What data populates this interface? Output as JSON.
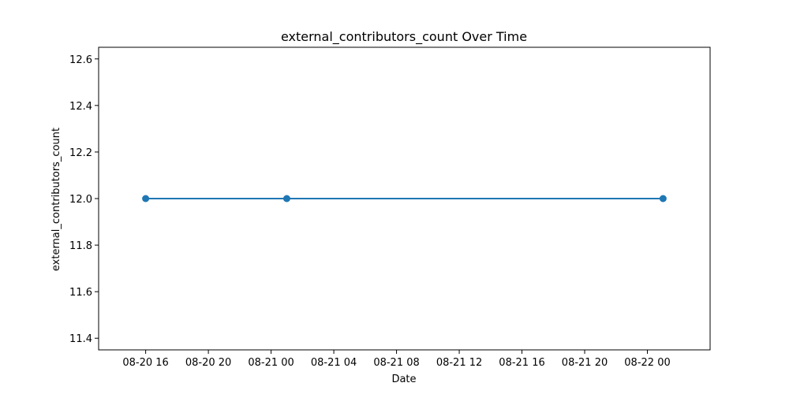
{
  "chart_data": {
    "type": "line",
    "title": "external_contributors_count Over Time",
    "xlabel": "Date",
    "ylabel": "external_contributors_count",
    "x": [
      "2024-08-20 16:00",
      "2024-08-21 01:00",
      "2024-08-22 01:00"
    ],
    "series": [
      {
        "values": [
          12.0,
          12.0,
          12.0
        ]
      }
    ],
    "xlim": [
      "2024-08-20 13:00",
      "2024-08-22 04:00"
    ],
    "ylim": [
      11.35,
      12.65
    ],
    "x_ticks": [
      {
        "value": "2024-08-20 16:00",
        "label": "08-20 16"
      },
      {
        "value": "2024-08-20 20:00",
        "label": "08-20 20"
      },
      {
        "value": "2024-08-21 00:00",
        "label": "08-21 00"
      },
      {
        "value": "2024-08-21 04:00",
        "label": "08-21 04"
      },
      {
        "value": "2024-08-21 08:00",
        "label": "08-21 08"
      },
      {
        "value": "2024-08-21 12:00",
        "label": "08-21 12"
      },
      {
        "value": "2024-08-21 16:00",
        "label": "08-21 16"
      },
      {
        "value": "2024-08-21 20:00",
        "label": "08-21 20"
      },
      {
        "value": "2024-08-22 00:00",
        "label": "08-22 00"
      }
    ],
    "y_ticks": [
      {
        "value": 11.4,
        "label": "11.4"
      },
      {
        "value": 11.6,
        "label": "11.6"
      },
      {
        "value": 11.8,
        "label": "11.8"
      },
      {
        "value": 12.0,
        "label": "12.0"
      },
      {
        "value": 12.2,
        "label": "12.2"
      },
      {
        "value": 12.4,
        "label": "12.4"
      },
      {
        "value": 12.6,
        "label": "12.6"
      }
    ],
    "grid": false,
    "markers": "circle",
    "colors": {
      "series": "#1f77b4"
    }
  }
}
